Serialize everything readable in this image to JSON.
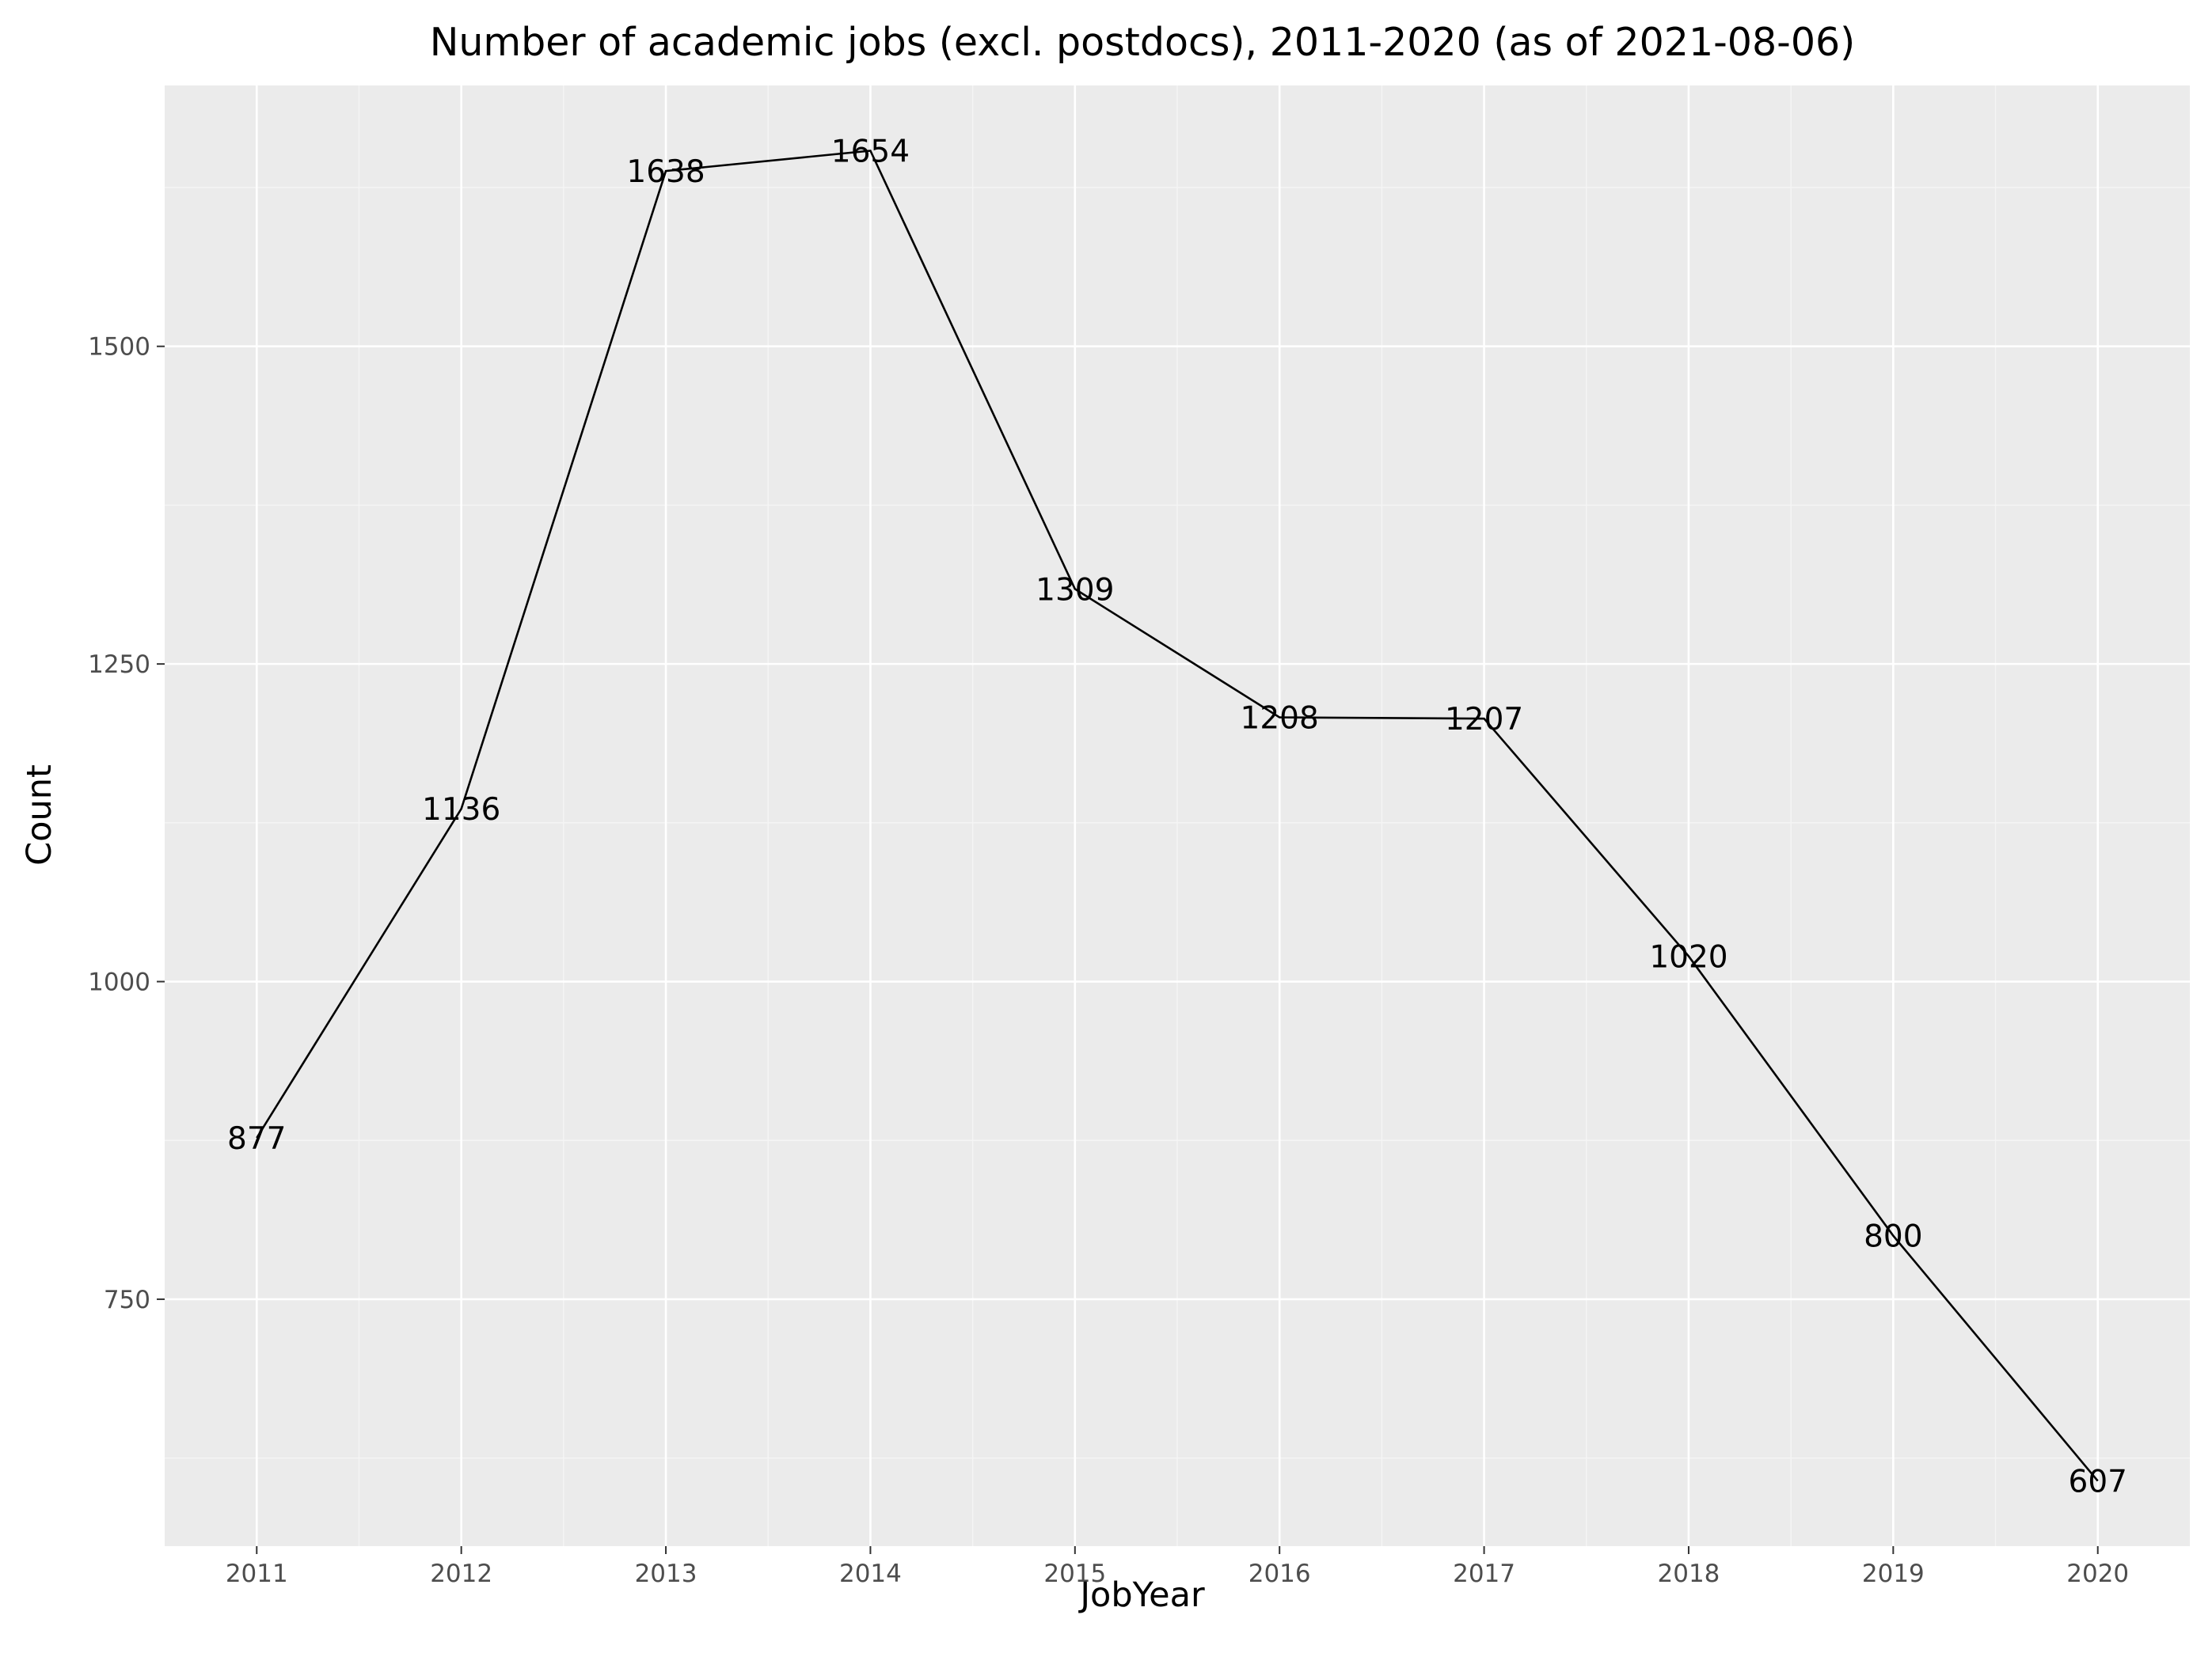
{
  "chart_data": {
    "type": "line",
    "title": "Number of academic jobs (excl. postdocs), 2011-2020 (as of 2021-08-06)",
    "xlabel": "JobYear",
    "ylabel": "Count",
    "x": [
      2011,
      2012,
      2013,
      2014,
      2015,
      2016,
      2017,
      2018,
      2019,
      2020
    ],
    "values": [
      877,
      1136,
      1638,
      1654,
      1309,
      1208,
      1207,
      1020,
      800,
      607
    ],
    "point_labels": [
      "877",
      "1136",
      "1638",
      "1654",
      "1309",
      "1208",
      "1207",
      "1020",
      "800",
      "607"
    ],
    "x_tick_labels": [
      "2011",
      "2012",
      "2013",
      "2014",
      "2015",
      "2016",
      "2017",
      "2018",
      "2019",
      "2020"
    ],
    "y_ticks": [
      750,
      1000,
      1250,
      1500
    ],
    "y_tick_labels": [
      "750",
      "1000",
      "1250",
      "1500"
    ],
    "xlim": [
      2010.55,
      2020.45
    ],
    "ylim": [
      555.65,
      1705.35
    ],
    "grid": true,
    "legend": "none",
    "colors": {
      "panel_background": "#ebebeb",
      "grid_major": "#ffffff",
      "grid_minor": "#f5f5f5",
      "line": "#000000",
      "tick_label": "#4d4d4d",
      "tick_mark": "#333333",
      "text": "#000000"
    }
  }
}
